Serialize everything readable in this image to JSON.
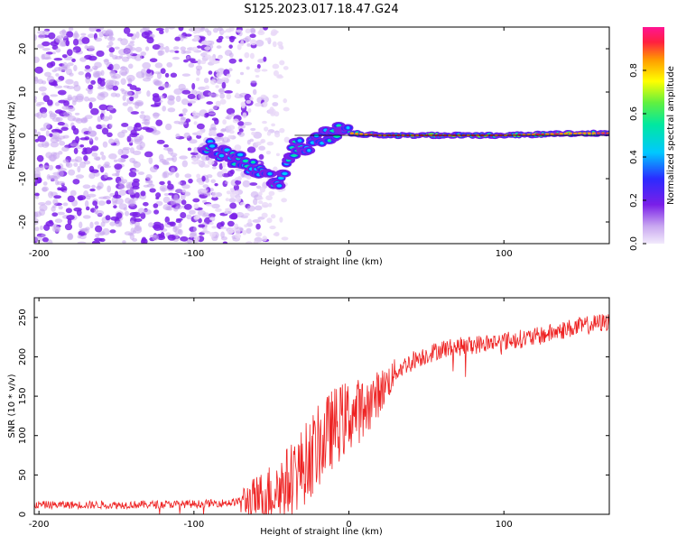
{
  "title": "S125.2023.017.18.47.G24",
  "colors": {
    "snr_line": "#ee2222",
    "ridge_core": "#e83a3a",
    "colormap": [
      "#e8d8f8",
      "#c9a8f0",
      "#7a1fe8",
      "#2b2bff",
      "#00c8ff",
      "#00e8a0",
      "#60f040",
      "#ffff00",
      "#ff9a00",
      "#ff2040",
      "#ff1493"
    ]
  },
  "chart_data": [
    {
      "type": "heatmap",
      "title": "S125.2023.017.18.47.G24",
      "xlabel": "Height of straight line (km)",
      "ylabel": "Frequency (Hz)",
      "xlim": [
        -203,
        168
      ],
      "ylim": [
        -25,
        25
      ],
      "xticks": [
        -200,
        -100,
        0,
        100
      ],
      "yticks": [
        -20,
        -10,
        0,
        10,
        20
      ],
      "ridge": {
        "x": [
          -93,
          -85,
          -75,
          -65,
          -55,
          -45,
          -40,
          -35,
          -25,
          -15,
          -5,
          0,
          20,
          50,
          100,
          150,
          168
        ],
        "y": [
          -2,
          -4,
          -5,
          -7,
          -9,
          -11,
          -6,
          -3,
          -2,
          0,
          1,
          0.5,
          0,
          0,
          0,
          0.5,
          0.5
        ]
      },
      "noise_region": {
        "x": [
          -203,
          -55
        ],
        "y": [
          -25,
          25
        ]
      },
      "colorbar": {
        "label": "Normalized spectral amplitude",
        "range": [
          0.0,
          1.0
        ],
        "ticks": [
          0.0,
          0.2,
          0.4,
          0.6,
          0.8
        ]
      }
    },
    {
      "type": "line",
      "xlabel": "Height of straight line (km)",
      "ylabel": "SNR (10 * v/v)",
      "xlim": [
        -203,
        168
      ],
      "ylim": [
        0,
        275
      ],
      "xticks": [
        -200,
        -100,
        0,
        100
      ],
      "yticks": [
        0,
        50,
        100,
        150,
        200,
        250
      ],
      "trend": {
        "x": [
          -203,
          -150,
          -100,
          -75,
          -60,
          -50,
          -40,
          -30,
          -20,
          -10,
          0,
          10,
          20,
          30,
          40,
          60,
          80,
          100,
          120,
          140,
          168
        ],
        "y": [
          12,
          12,
          13,
          15,
          20,
          28,
          40,
          60,
          85,
          110,
          125,
          135,
          155,
          180,
          195,
          210,
          215,
          220,
          225,
          235,
          245
        ]
      }
    }
  ]
}
